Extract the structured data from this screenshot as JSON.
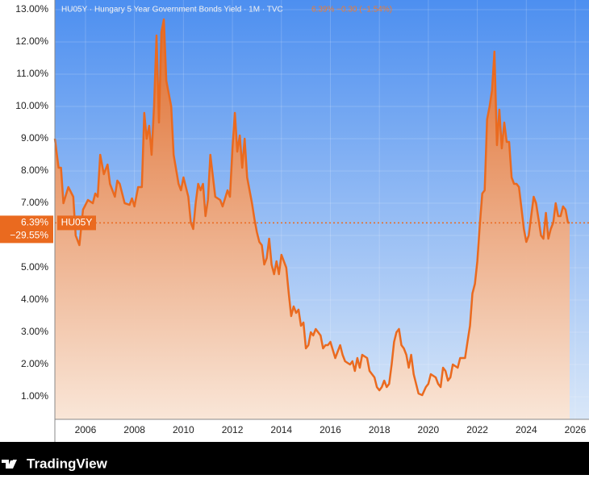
{
  "chart_data": {
    "type": "area",
    "title": "HU05Y · Hungary 5 Year Government Bonds Yield · 1M · TVC",
    "subtitle": "6.39%  −0.30 (−1.54%)",
    "last_value": 6.39,
    "last_value_label": "6.39%",
    "change_label": "−29.55%",
    "footer": "TradingView",
    "grid": true,
    "xlim": [
      2004.75,
      2026.56
    ],
    "xticks": [
      2006,
      2008,
      2010,
      2012,
      2014,
      2016,
      2018,
      2020,
      2022,
      2024,
      2026
    ],
    "ylim": [
      0.3,
      13.3
    ],
    "yticks": [
      {
        "value": 1,
        "label": "1.00%"
      },
      {
        "value": 2,
        "label": "2.00%"
      },
      {
        "value": 3,
        "label": "3.00%"
      },
      {
        "value": 4,
        "label": "4.00%"
      },
      {
        "value": 5,
        "label": "5.00%"
      },
      {
        "value": 6,
        "label": "6.00%"
      },
      {
        "value": 7,
        "label": "7.00%"
      },
      {
        "value": 8,
        "label": "8.00%"
      },
      {
        "value": 9,
        "label": "9.00%"
      },
      {
        "value": 10,
        "label": "10.00%"
      },
      {
        "value": 11,
        "label": "11.00%"
      },
      {
        "value": 12,
        "label": "12.00%"
      },
      {
        "value": 13,
        "label": "13.00%"
      }
    ],
    "x": [
      2004.75,
      2004.9,
      2005.0,
      2005.1,
      2005.3,
      2005.5,
      2005.6,
      2005.75,
      2005.9,
      2006.1,
      2006.3,
      2006.4,
      2006.5,
      2006.6,
      2006.75,
      2006.9,
      2007.0,
      2007.2,
      2007.3,
      2007.4,
      2007.6,
      2007.8,
      2007.9,
      2008.0,
      2008.15,
      2008.3,
      2008.4,
      2008.5,
      2008.6,
      2008.7,
      2008.8,
      2008.9,
      2009.0,
      2009.1,
      2009.2,
      2009.3,
      2009.5,
      2009.6,
      2009.8,
      2009.9,
      2010.0,
      2010.2,
      2010.3,
      2010.4,
      2010.5,
      2010.6,
      2010.7,
      2010.8,
      2010.9,
      2011.0,
      2011.1,
      2011.3,
      2011.5,
      2011.6,
      2011.8,
      2011.9,
      2012.0,
      2012.1,
      2012.2,
      2012.3,
      2012.4,
      2012.5,
      2012.6,
      2012.8,
      2012.9,
      2013.0,
      2013.1,
      2013.2,
      2013.3,
      2013.4,
      2013.5,
      2013.6,
      2013.7,
      2013.8,
      2013.9,
      2014.0,
      2014.2,
      2014.3,
      2014.4,
      2014.5,
      2014.6,
      2014.7,
      2014.8,
      2014.9,
      2015.0,
      2015.1,
      2015.2,
      2015.3,
      2015.4,
      2015.6,
      2015.7,
      2015.8,
      2015.9,
      2016.0,
      2016.2,
      2016.4,
      2016.5,
      2016.6,
      2016.8,
      2016.9,
      2017.0,
      2017.1,
      2017.2,
      2017.3,
      2017.5,
      2017.6,
      2017.8,
      2017.9,
      2018.0,
      2018.1,
      2018.2,
      2018.3,
      2018.4,
      2018.5,
      2018.6,
      2018.7,
      2018.8,
      2018.9,
      2019.0,
      2019.1,
      2019.2,
      2019.3,
      2019.4,
      2019.5,
      2019.6,
      2019.75,
      2019.9,
      2020.0,
      2020.1,
      2020.3,
      2020.4,
      2020.5,
      2020.6,
      2020.7,
      2020.8,
      2020.9,
      2021.0,
      2021.2,
      2021.3,
      2021.5,
      2021.6,
      2021.7,
      2021.8,
      2021.9,
      2022.0,
      2022.1,
      2022.2,
      2022.3,
      2022.4,
      2022.5,
      2022.6,
      2022.7,
      2022.8,
      2022.9,
      2023.0,
      2023.1,
      2023.2,
      2023.3,
      2023.4,
      2023.5,
      2023.6,
      2023.7,
      2023.9,
      2024.0,
      2024.1,
      2024.3,
      2024.4,
      2024.5,
      2024.6,
      2024.7,
      2024.8,
      2024.9,
      2025.0,
      2025.1,
      2025.2,
      2025.3,
      2025.4,
      2025.5,
      2025.6,
      2025.7,
      2025.77
    ],
    "series": [
      {
        "name": "HU05Y",
        "color": "#ea6a1f",
        "values": [
          9.0,
          8.1,
          8.1,
          7.0,
          7.5,
          7.2,
          6.0,
          5.7,
          6.8,
          7.1,
          7.0,
          7.3,
          7.2,
          8.5,
          7.9,
          8.2,
          7.6,
          7.2,
          7.7,
          7.6,
          7.0,
          6.95,
          7.15,
          6.9,
          7.5,
          7.5,
          9.8,
          9.0,
          9.4,
          8.5,
          10.0,
          12.2,
          9.5,
          12.3,
          12.7,
          10.8,
          10.0,
          8.5,
          7.6,
          7.4,
          7.8,
          7.2,
          6.4,
          6.2,
          7.0,
          7.6,
          7.4,
          7.6,
          6.6,
          7.1,
          8.5,
          7.2,
          7.1,
          6.9,
          7.4,
          7.2,
          8.7,
          9.8,
          8.6,
          9.1,
          8.1,
          9.0,
          7.8,
          7.0,
          6.5,
          6.1,
          5.8,
          5.7,
          5.1,
          5.3,
          5.9,
          5.1,
          4.8,
          5.2,
          4.8,
          5.4,
          5.0,
          4.2,
          3.5,
          3.8,
          3.6,
          3.7,
          3.2,
          3.3,
          2.5,
          2.6,
          3.0,
          2.9,
          3.1,
          2.9,
          2.5,
          2.6,
          2.6,
          2.7,
          2.2,
          2.6,
          2.3,
          2.1,
          2.0,
          2.1,
          1.8,
          2.2,
          1.9,
          2.3,
          2.2,
          1.8,
          1.6,
          1.3,
          1.2,
          1.3,
          1.5,
          1.3,
          1.4,
          2.0,
          2.7,
          3.0,
          3.1,
          2.6,
          2.5,
          2.3,
          1.9,
          2.3,
          1.7,
          1.4,
          1.1,
          1.05,
          1.3,
          1.4,
          1.7,
          1.6,
          1.4,
          1.3,
          1.9,
          1.8,
          1.5,
          1.6,
          2.0,
          1.9,
          2.2,
          2.2,
          2.7,
          3.2,
          4.2,
          4.5,
          5.2,
          6.3,
          7.3,
          7.4,
          9.6,
          10.0,
          10.5,
          11.7,
          8.8,
          9.9,
          8.7,
          9.5,
          8.9,
          8.9,
          7.8,
          7.6,
          7.6,
          7.5,
          6.2,
          5.8,
          6.0,
          7.2,
          7.0,
          6.5,
          6.0,
          5.9,
          6.7,
          5.9,
          6.2,
          6.4,
          7.0,
          6.6,
          6.6,
          6.9,
          6.8,
          6.4,
          6.39
        ]
      }
    ]
  }
}
